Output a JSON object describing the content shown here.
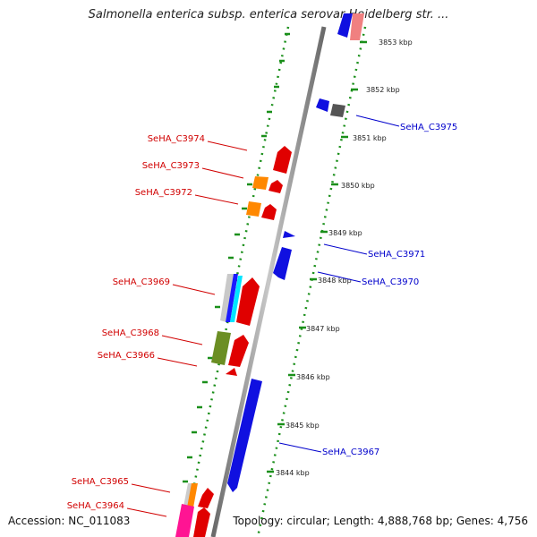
{
  "title": "Salmonella enterica subsp. enterica serovar Heidelberg str. ...",
  "footer": {
    "accession": "Accession: NC_011083",
    "topology": "Topology: circular; Length: 4,888,768 bp; Genes: 4,756"
  },
  "colors": {
    "forward_label": "#d10000",
    "reverse_label": "#0000cc",
    "backbone": "#8c8c8c",
    "dotted_track": "#1a8f1a"
  },
  "ticks": [
    "3853 kbp",
    "3852 kbp",
    "3851 kbp",
    "3850 kbp",
    "3849 kbp",
    "3848 kbp",
    "3847 kbp",
    "3846 kbp",
    "3845 kbp",
    "3844 kbp"
  ],
  "genes_forward": [
    {
      "label": "SeHA_C3974"
    },
    {
      "label": "SeHA_C3973"
    },
    {
      "label": "SeHA_C3972"
    },
    {
      "label": "SeHA_C3969"
    },
    {
      "label": "SeHA_C3968"
    },
    {
      "label": "SeHA_C3966"
    },
    {
      "label": "SeHA_C3965"
    },
    {
      "label": "SeHA_C3964"
    }
  ],
  "genes_reverse": [
    {
      "label": "SeHA_C3975"
    },
    {
      "label": "SeHA_C3971"
    },
    {
      "label": "SeHA_C3970"
    },
    {
      "label": "SeHA_C3967"
    }
  ]
}
